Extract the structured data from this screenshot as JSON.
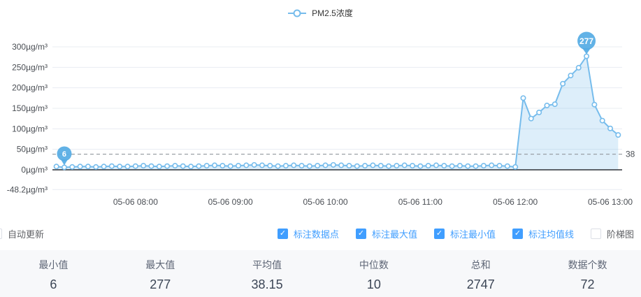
{
  "legend": {
    "series_label": "PM2.5浓度"
  },
  "chart_data": {
    "type": "area",
    "series_name": "PM2.5浓度",
    "unit": "µg/m³",
    "ylim": [
      -48.2,
      300
    ],
    "grid": "horizontal-only",
    "legend_position": "top-center",
    "y_ticks": [
      {
        "value": 300,
        "label": "300µg/m³"
      },
      {
        "value": 250,
        "label": "250µg/m³"
      },
      {
        "value": 200,
        "label": "200µg/m³"
      },
      {
        "value": 150,
        "label": "150µg/m³"
      },
      {
        "value": 100,
        "label": "100µg/m³"
      },
      {
        "value": 50,
        "label": "50µg/m³"
      },
      {
        "value": 0,
        "label": "0µg/m³"
      },
      {
        "value": -48.2,
        "label": "-48.2µg/m³"
      }
    ],
    "x_ticks": [
      {
        "index": 10,
        "label": "05-06 08:00"
      },
      {
        "index": 22,
        "label": "05-06 09:00"
      },
      {
        "index": 34,
        "label": "05-06 10:00"
      },
      {
        "index": 46,
        "label": "05-06 11:00"
      },
      {
        "index": 58,
        "label": "05-06 12:00"
      },
      {
        "index": 70,
        "label": "05-06 13:00"
      }
    ],
    "values": [
      8,
      6,
      7,
      8,
      8,
      7,
      8,
      9,
      8,
      8,
      9,
      10,
      9,
      8,
      9,
      10,
      9,
      8,
      9,
      10,
      11,
      10,
      9,
      10,
      11,
      12,
      11,
      10,
      9,
      10,
      11,
      10,
      9,
      10,
      11,
      12,
      11,
      10,
      9,
      10,
      11,
      10,
      9,
      10,
      11,
      10,
      9,
      10,
      11,
      10,
      9,
      10,
      9,
      9,
      10,
      11,
      10,
      9,
      7,
      175,
      125,
      140,
      157,
      160,
      210,
      230,
      249,
      277,
      159,
      120,
      101,
      85
    ],
    "avg_line": {
      "value": 38.15,
      "label": "38"
    },
    "max_marker": {
      "index": 67,
      "value": 277,
      "label": "277"
    },
    "min_marker": {
      "index": 1,
      "value": 6,
      "label": "6"
    },
    "colors": {
      "line": "#76bcec",
      "area_fill": "rgba(118,188,236,0.25)",
      "pin": "#55abe4",
      "grid": "#e8ecf2",
      "zero_axis": "#2e3238",
      "avg_dash": "#9aa0a6",
      "checked_blue": "#409eff"
    }
  },
  "controls": {
    "auto_update": {
      "label": "自动更新",
      "checked": false
    },
    "options": [
      {
        "label": "标注数据点",
        "checked": true
      },
      {
        "label": "标注最大值",
        "checked": true
      },
      {
        "label": "标注最小值",
        "checked": true
      },
      {
        "label": "标注均值线",
        "checked": true
      },
      {
        "label": "阶梯图",
        "checked": false
      }
    ]
  },
  "stats": [
    {
      "label": "最小值",
      "value": "6"
    },
    {
      "label": "最大值",
      "value": "277"
    },
    {
      "label": "平均值",
      "value": "38.15"
    },
    {
      "label": "中位数",
      "value": "10"
    },
    {
      "label": "总和",
      "value": "2747"
    },
    {
      "label": "数据个数",
      "value": "72"
    }
  ]
}
